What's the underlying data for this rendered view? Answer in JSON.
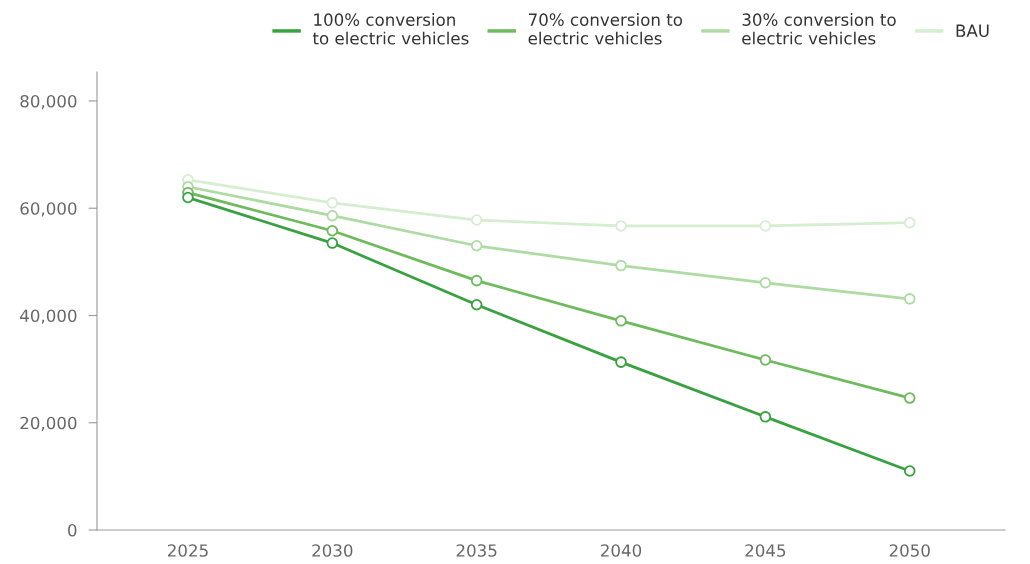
{
  "chart_data": {
    "type": "line",
    "x": [
      2025,
      2030,
      2035,
      2040,
      2045,
      2050
    ],
    "series": [
      {
        "name": "100% conversion\nto electric vehicles",
        "color": "#3aa141",
        "values": [
          62000,
          53500,
          42000,
          31300,
          21100,
          11000
        ]
      },
      {
        "name": "70% conversion to\nelectric vehicles",
        "color": "#6dbb5c",
        "values": [
          62900,
          55800,
          46500,
          39000,
          31700,
          24600
        ]
      },
      {
        "name": "30% conversion to\nelectric vehicles",
        "color": "#addba3",
        "values": [
          64000,
          58600,
          53000,
          49300,
          46100,
          43100
        ]
      },
      {
        "name": "BAU",
        "color": "#d5edd0",
        "values": [
          65300,
          61000,
          57800,
          56700,
          56700,
          57300
        ]
      }
    ],
    "xlim": [
      2021.85,
      2053.3
    ],
    "xticks": [
      2025,
      2030,
      2035,
      2040,
      2045,
      2050
    ],
    "ylim": [
      0,
      85400
    ],
    "yticks": [
      {
        "value": 0,
        "label": "0"
      },
      {
        "value": 20000,
        "label": "20,000"
      },
      {
        "value": 40000,
        "label": "40,000"
      },
      {
        "value": 60000,
        "label": "60,000"
      },
      {
        "value": 80000,
        "label": "80,000"
      }
    ],
    "grid": false,
    "legend": "top right",
    "marker": "circle",
    "line_style": "solid"
  }
}
